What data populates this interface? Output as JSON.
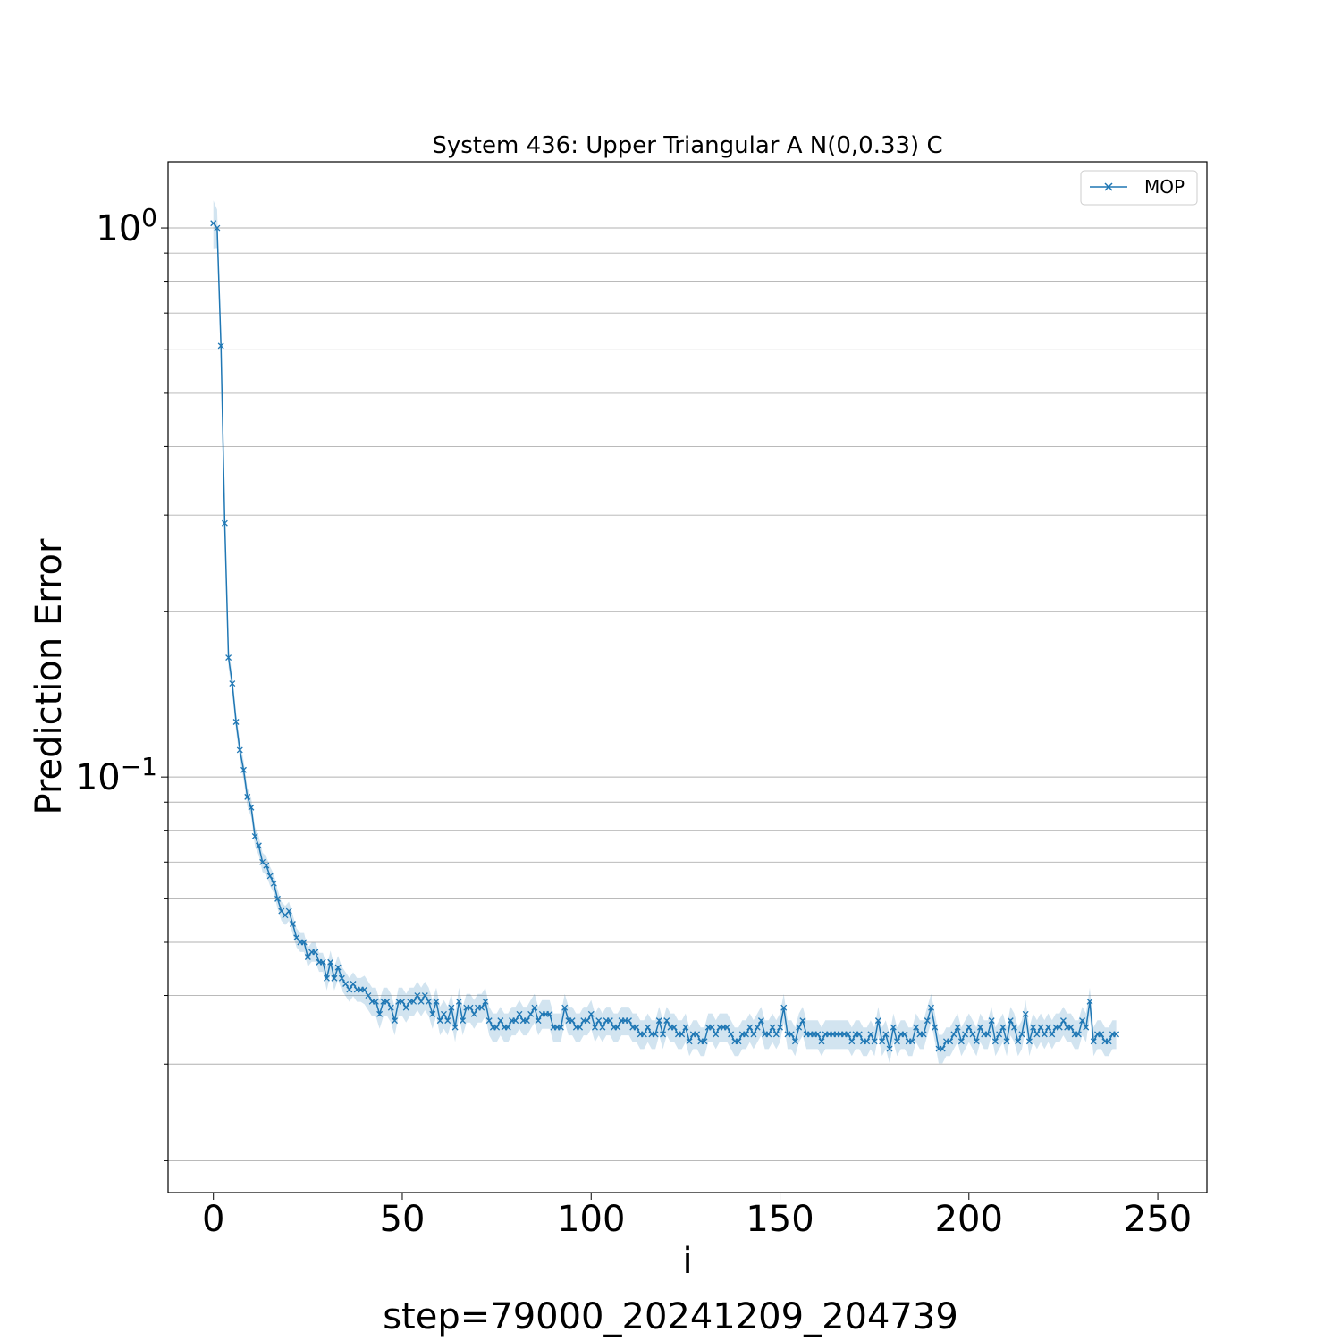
{
  "chart_data": {
    "type": "line",
    "title": "System 436: Upper Triangular A N(0,0.33) C",
    "xlabel": "i",
    "ylabel": "Prediction Error",
    "footer": "step=79000_20241209_204739",
    "yscale": "log",
    "xlim": [
      -12,
      263
    ],
    "ylim": [
      0.0175,
      1.32
    ],
    "xticks": [
      0,
      50,
      100,
      150,
      200,
      250
    ],
    "xtick_labels": [
      "0",
      "50",
      "100",
      "150",
      "200",
      "250"
    ],
    "yticks": [
      {
        "value": 1,
        "base": "10",
        "exp": "0"
      },
      {
        "value": 0.1,
        "base": "10",
        "exp": "−1"
      }
    ],
    "grid": "y-major-and-minor",
    "legend": {
      "position": "top-right"
    },
    "series": [
      {
        "name": "MOP",
        "color": "#1f77b4",
        "marker": "x",
        "x_start": 0,
        "x_step": 1,
        "values": [
          1.02,
          1.0,
          0.61,
          0.29,
          0.165,
          0.148,
          0.126,
          0.112,
          0.103,
          0.092,
          0.088,
          0.078,
          0.075,
          0.07,
          0.069,
          0.066,
          0.064,
          0.06,
          0.057,
          0.056,
          0.057,
          0.054,
          0.051,
          0.05,
          0.05,
          0.047,
          0.048,
          0.048,
          0.046,
          0.046,
          0.043,
          0.046,
          0.043,
          0.045,
          0.043,
          0.042,
          0.041,
          0.042,
          0.041,
          0.041,
          0.041,
          0.04,
          0.039,
          0.039,
          0.037,
          0.039,
          0.039,
          0.038,
          0.036,
          0.039,
          0.039,
          0.038,
          0.039,
          0.039,
          0.04,
          0.039,
          0.04,
          0.039,
          0.037,
          0.039,
          0.036,
          0.037,
          0.036,
          0.038,
          0.035,
          0.039,
          0.036,
          0.038,
          0.038,
          0.037,
          0.038,
          0.038,
          0.039,
          0.036,
          0.035,
          0.035,
          0.036,
          0.035,
          0.035,
          0.036,
          0.036,
          0.037,
          0.036,
          0.036,
          0.037,
          0.038,
          0.036,
          0.037,
          0.037,
          0.037,
          0.035,
          0.035,
          0.035,
          0.038,
          0.036,
          0.036,
          0.035,
          0.035,
          0.036,
          0.036,
          0.037,
          0.035,
          0.036,
          0.035,
          0.036,
          0.036,
          0.035,
          0.035,
          0.036,
          0.036,
          0.036,
          0.035,
          0.035,
          0.034,
          0.034,
          0.035,
          0.034,
          0.034,
          0.036,
          0.034,
          0.036,
          0.035,
          0.035,
          0.034,
          0.034,
          0.035,
          0.033,
          0.034,
          0.034,
          0.033,
          0.033,
          0.035,
          0.035,
          0.034,
          0.035,
          0.035,
          0.035,
          0.034,
          0.033,
          0.033,
          0.034,
          0.034,
          0.035,
          0.034,
          0.035,
          0.036,
          0.034,
          0.034,
          0.035,
          0.034,
          0.035,
          0.038,
          0.034,
          0.034,
          0.033,
          0.035,
          0.036,
          0.034,
          0.034,
          0.034,
          0.034,
          0.033,
          0.034,
          0.034,
          0.034,
          0.034,
          0.034,
          0.034,
          0.034,
          0.033,
          0.034,
          0.034,
          0.033,
          0.033,
          0.034,
          0.033,
          0.036,
          0.033,
          0.034,
          0.032,
          0.035,
          0.033,
          0.034,
          0.034,
          0.033,
          0.033,
          0.035,
          0.034,
          0.034,
          0.036,
          0.038,
          0.035,
          0.032,
          0.032,
          0.033,
          0.033,
          0.034,
          0.035,
          0.033,
          0.034,
          0.035,
          0.034,
          0.033,
          0.035,
          0.034,
          0.034,
          0.036,
          0.033,
          0.034,
          0.035,
          0.033,
          0.036,
          0.035,
          0.033,
          0.034,
          0.037,
          0.033,
          0.035,
          0.034,
          0.035,
          0.034,
          0.035,
          0.034,
          0.035,
          0.035,
          0.036,
          0.035,
          0.035,
          0.034,
          0.034,
          0.036,
          0.035,
          0.039,
          0.033,
          0.034,
          0.034,
          0.033,
          0.033,
          0.034,
          0.034
        ],
        "band_half_width": [
          0.1,
          0.08,
          0.05,
          0.04,
          0.04,
          0.04,
          0.04,
          0.04,
          0.04,
          0.04,
          0.04,
          0.04,
          0.04,
          0.04,
          0.04,
          0.04,
          0.04,
          0.04,
          0.04,
          0.04,
          0.04,
          0.04,
          0.04,
          0.04,
          0.04,
          0.04,
          0.04,
          0.04,
          0.04,
          0.04,
          0.05,
          0.05,
          0.05,
          0.05,
          0.05,
          0.05,
          0.05,
          0.05,
          0.05,
          0.05,
          0.06,
          0.06,
          0.06,
          0.06,
          0.06,
          0.06,
          0.06,
          0.06,
          0.06,
          0.06,
          0.06,
          0.06,
          0.06,
          0.06,
          0.06,
          0.06,
          0.06,
          0.06,
          0.06,
          0.06,
          0.06,
          0.06,
          0.06,
          0.06,
          0.06,
          0.06,
          0.06,
          0.06,
          0.06,
          0.06,
          0.06,
          0.06,
          0.06,
          0.06,
          0.06,
          0.06,
          0.06,
          0.06,
          0.06,
          0.06,
          0.06,
          0.06,
          0.06,
          0.06,
          0.06,
          0.06,
          0.06,
          0.06,
          0.06,
          0.06,
          0.06,
          0.06,
          0.06,
          0.06,
          0.06,
          0.06,
          0.06,
          0.06,
          0.06,
          0.06,
          0.06,
          0.06,
          0.06,
          0.06,
          0.06,
          0.06,
          0.06,
          0.06,
          0.06,
          0.06,
          0.06,
          0.06,
          0.06,
          0.06,
          0.06,
          0.06,
          0.06,
          0.06,
          0.06,
          0.06,
          0.06,
          0.06,
          0.06,
          0.06,
          0.06,
          0.06,
          0.06,
          0.06,
          0.06,
          0.06,
          0.06,
          0.06,
          0.06,
          0.06,
          0.06,
          0.06,
          0.06,
          0.06,
          0.06,
          0.06,
          0.06,
          0.06,
          0.06,
          0.06,
          0.06,
          0.06,
          0.06,
          0.06,
          0.06,
          0.06,
          0.06,
          0.06,
          0.06,
          0.06,
          0.06,
          0.06,
          0.06,
          0.06,
          0.06,
          0.06,
          0.06,
          0.06,
          0.06,
          0.06,
          0.06,
          0.06,
          0.06,
          0.06,
          0.06,
          0.06,
          0.06,
          0.06,
          0.06,
          0.06,
          0.06,
          0.06,
          0.06,
          0.06,
          0.06,
          0.06,
          0.06,
          0.06,
          0.06,
          0.06,
          0.06,
          0.06,
          0.06,
          0.06,
          0.06,
          0.06,
          0.06,
          0.06,
          0.06,
          0.06,
          0.06,
          0.06,
          0.06,
          0.06,
          0.06,
          0.06,
          0.06,
          0.06,
          0.06,
          0.06,
          0.06,
          0.06,
          0.06,
          0.06,
          0.06,
          0.06,
          0.06,
          0.06,
          0.06,
          0.06,
          0.06,
          0.06,
          0.06,
          0.06,
          0.06,
          0.06,
          0.06,
          0.06,
          0.06,
          0.06,
          0.06,
          0.06,
          0.06,
          0.06,
          0.06,
          0.06,
          0.06,
          0.06,
          0.06,
          0.06,
          0.06,
          0.06,
          0.06,
          0.06,
          0.06,
          0.06,
          0.06,
          0.06,
          0.06,
          0.06,
          0.06,
          0.06,
          0.06,
          0.06
        ]
      }
    ]
  }
}
